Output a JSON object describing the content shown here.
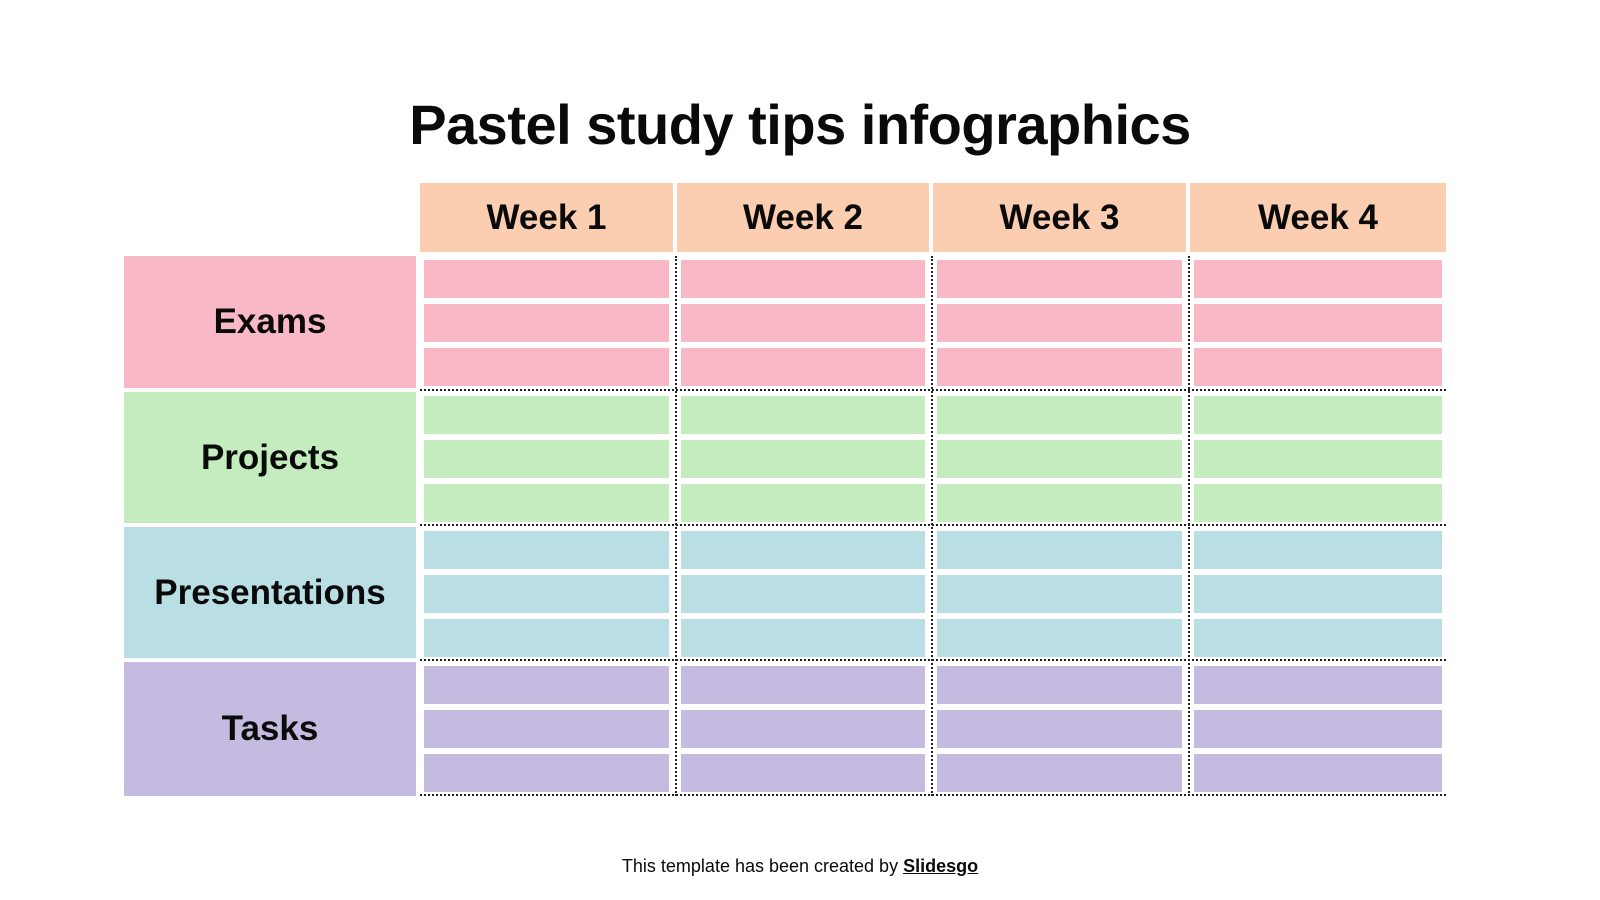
{
  "title": "Pastel study tips infographics",
  "columns": [
    "Week 1",
    "Week 2",
    "Week 3",
    "Week 4"
  ],
  "rows": [
    {
      "label": "Exams",
      "color": "#f9b8c6"
    },
    {
      "label": "Projects",
      "color": "#c5ecbf"
    },
    {
      "label": "Presentations",
      "color": "#b9dfe5"
    },
    {
      "label": "Tasks",
      "color": "#c5badf"
    }
  ],
  "header_color": "#fbceb1",
  "footer": {
    "text": "This template has been created by ",
    "link": "Slidesgo"
  }
}
